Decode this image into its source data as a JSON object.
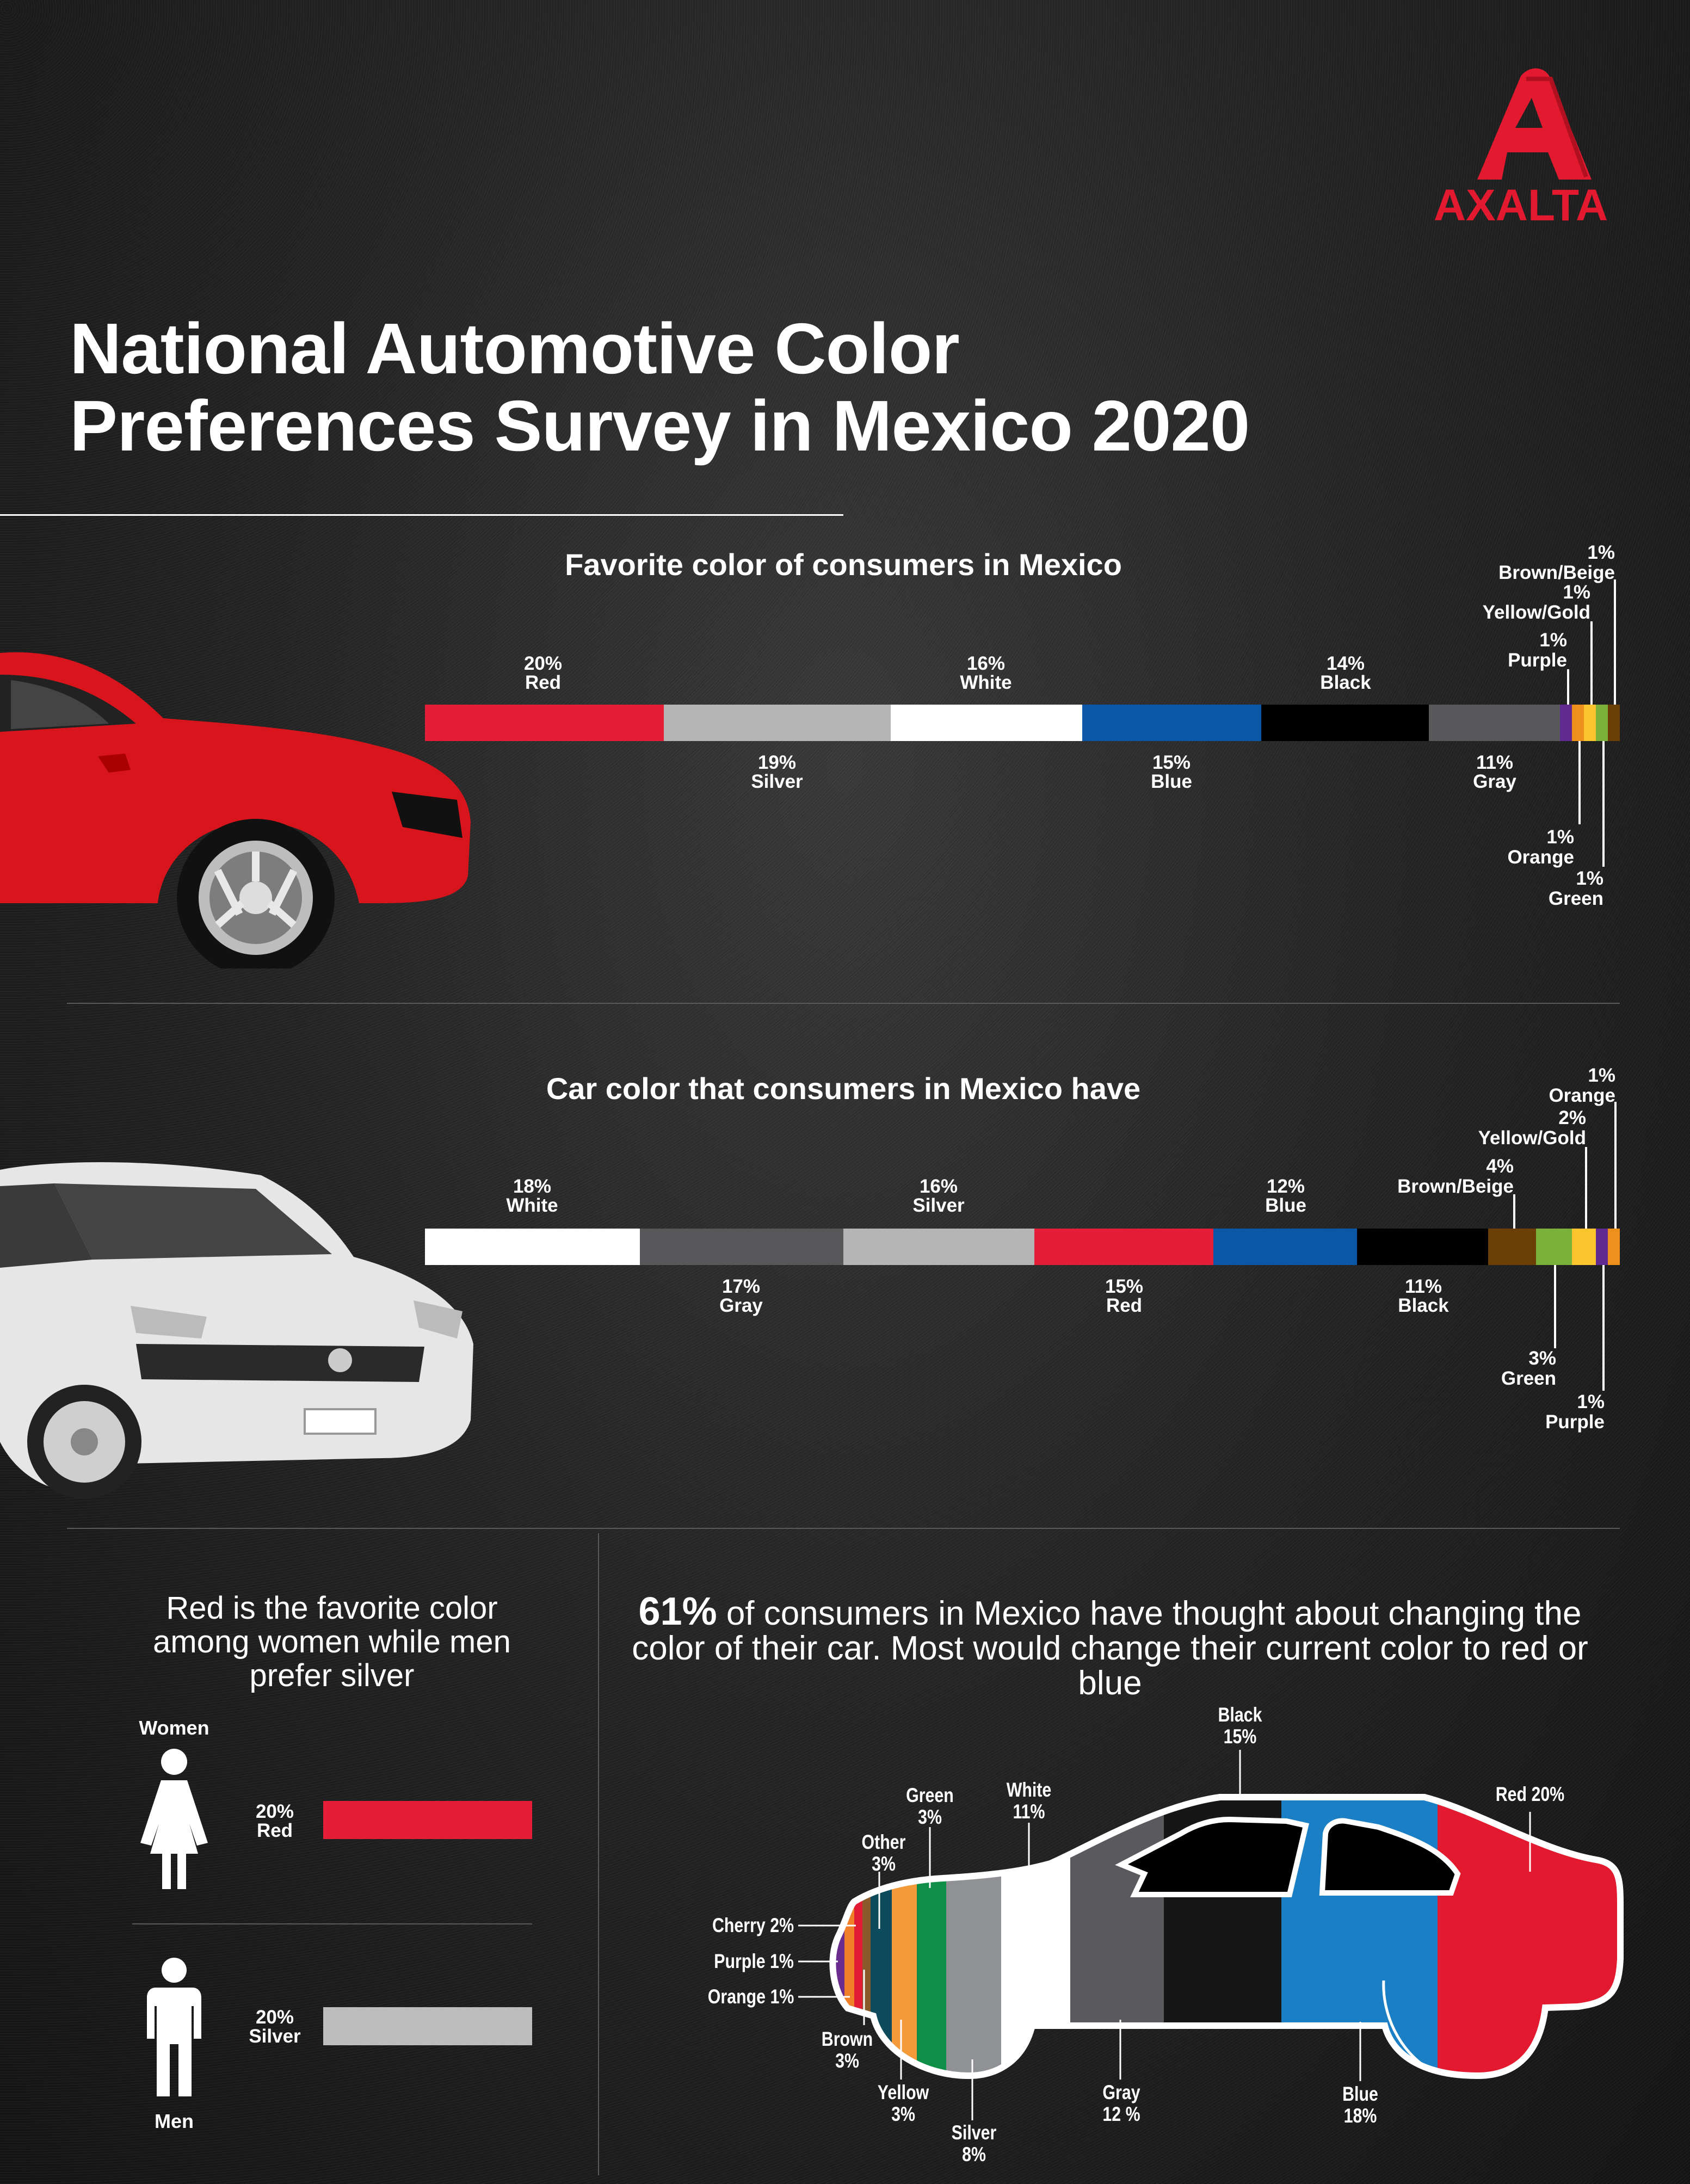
{
  "brand": {
    "logo_text": "AXALTA",
    "color": "#e31a2f"
  },
  "title": {
    "line1": "National Automotive Color",
    "line2": "Preferences Survey in Mexico 2020"
  },
  "chart_data": [
    {
      "type": "bar",
      "orientation": "stacked-horizontal",
      "title": "Favorite color of consumers in Mexico",
      "unit": "%",
      "segments": [
        {
          "name": "Red",
          "value": 20,
          "label": "20%",
          "color": "#e31e36"
        },
        {
          "name": "Silver",
          "value": 19,
          "label": "19%",
          "color": "#b5b5b5"
        },
        {
          "name": "White",
          "value": 16,
          "label": "16%",
          "color": "#ffffff"
        },
        {
          "name": "Blue",
          "value": 15,
          "label": "15%",
          "color": "#0a57a8"
        },
        {
          "name": "Black",
          "value": 14,
          "label": "14%",
          "color": "#000000"
        },
        {
          "name": "Gray",
          "value": 11,
          "label": "11%",
          "color": "#58585a"
        },
        {
          "name": "Purple",
          "value": 1,
          "label": "1%",
          "color": "#5f2b91"
        },
        {
          "name": "Orange",
          "value": 1,
          "label": "1%",
          "color": "#f0901c"
        },
        {
          "name": "Yellow/Gold",
          "value": 1,
          "label": "1%",
          "color": "#fcc42d"
        },
        {
          "name": "Green",
          "value": 1,
          "label": "1%",
          "color": "#7bb03a"
        },
        {
          "name": "Brown/Beige",
          "value": 1,
          "label": "1%",
          "color": "#6b3f05"
        }
      ]
    },
    {
      "type": "bar",
      "orientation": "stacked-horizontal",
      "title": "Car color that consumers in Mexico have",
      "unit": "%",
      "segments": [
        {
          "name": "White",
          "value": 18,
          "label": "18%",
          "color": "#ffffff"
        },
        {
          "name": "Gray",
          "value": 17,
          "label": "17%",
          "color": "#58585a"
        },
        {
          "name": "Silver",
          "value": 16,
          "label": "16%",
          "color": "#b5b5b5"
        },
        {
          "name": "Red",
          "value": 15,
          "label": "15%",
          "color": "#e31e36"
        },
        {
          "name": "Blue",
          "value": 12,
          "label": "12%",
          "color": "#0a57a8"
        },
        {
          "name": "Black",
          "value": 11,
          "label": "11%",
          "color": "#000000"
        },
        {
          "name": "Brown/Beige",
          "value": 4,
          "label": "4%",
          "color": "#6b3f05"
        },
        {
          "name": "Green",
          "value": 3,
          "label": "3%",
          "color": "#7bb03a"
        },
        {
          "name": "Yellow/Gold",
          "value": 2,
          "label": "2%",
          "color": "#fcc42d"
        },
        {
          "name": "Purple",
          "value": 1,
          "label": "1%",
          "color": "#5f2b91"
        },
        {
          "name": "Orange",
          "value": 1,
          "label": "1%",
          "color": "#f0901c"
        }
      ]
    },
    {
      "type": "bar",
      "orientation": "horizontal",
      "title": "Red is the favorite color among women while men prefer silver",
      "unit": "%",
      "categories": [
        "Women",
        "Men"
      ],
      "series": [
        {
          "values": [
            20,
            20
          ]
        }
      ],
      "labels": [
        {
          "pct": "20%",
          "color_name": "Red",
          "color": "#e31e36"
        },
        {
          "pct": "20%",
          "color_name": "Silver",
          "color": "#bdbdbd"
        }
      ]
    },
    {
      "type": "bar",
      "orientation": "stacked-horizontal",
      "title": "",
      "unit": "%",
      "segments": [
        {
          "name": "Purple",
          "value": 1,
          "label": "1%",
          "color": "#6a2c8f"
        },
        {
          "name": "Orange",
          "value": 1,
          "label": "1%",
          "color": "#f07f2a"
        },
        {
          "name": "Cherry",
          "value": 2,
          "label": "2%",
          "color": "#e01b33"
        },
        {
          "name": "Brown",
          "value": 3,
          "label": "3%",
          "color": "#8b5a2b"
        },
        {
          "name": "Other",
          "value": 3,
          "label": "3%",
          "color": "#0d4a5c"
        },
        {
          "name": "Yellow",
          "value": 3,
          "label": "3%",
          "color": "#f39a3b"
        },
        {
          "name": "Green",
          "value": 3,
          "label": "3%",
          "color": "#0f8e47"
        },
        {
          "name": "Silver",
          "value": 8,
          "label": "8%",
          "color": "#8f9194"
        },
        {
          "name": "White",
          "value": 11,
          "label": "11%",
          "color": "#ffffff"
        },
        {
          "name": "Gray",
          "value": 12,
          "label": "12 %",
          "color": "#5a5a5e"
        },
        {
          "name": "Black",
          "value": 15,
          "label": "15%",
          "color": "#161616"
        },
        {
          "name": "Blue",
          "value": 18,
          "label": "18%",
          "color": "#1a7fc4"
        },
        {
          "name": "Red",
          "value": 20,
          "label": "20%",
          "color": "#e31a2f"
        }
      ]
    }
  ],
  "gender": {
    "line1": "Red is the favorite color",
    "line2": "among women while men",
    "line3": "prefer silver",
    "women": "Women",
    "men": "Men"
  },
  "change": {
    "highlight": "61%",
    "line1_rest": " of consumers in Mexico have thought about changing the",
    "line2": "color of their car. Most would change their current color to red or blue"
  }
}
